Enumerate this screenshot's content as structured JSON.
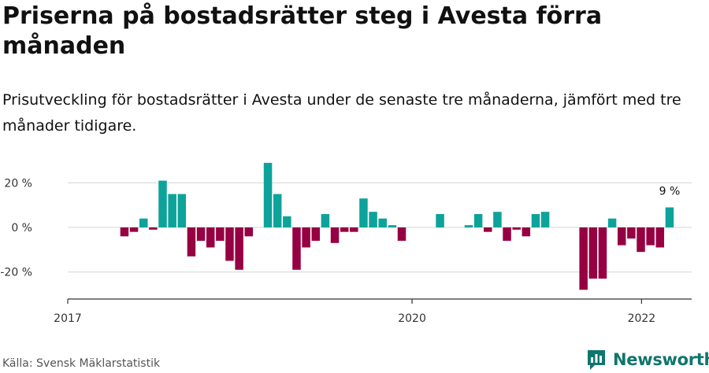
{
  "title": "Priserna på bostadsrätter steg i Avesta förra månaden",
  "subtitle": "Prisutveckling för bostadsrätter i Avesta under de senaste tre månaderna, jämfört med tre månader tidigare.",
  "source": "Källa: Svensk Mäklarstatistik",
  "brand": "Newsworthy",
  "colors": {
    "positive": "#0da39a",
    "negative": "#960042",
    "grid": "#dddddd",
    "axis": "#333333"
  },
  "chart_data": {
    "type": "bar",
    "x_start": "2017-01",
    "x_ticks": [
      "2017",
      "2020",
      "2022"
    ],
    "y_ticks": [
      20,
      0,
      -20
    ],
    "y_tick_labels": [
      "20 %",
      "0 %",
      "-20 %"
    ],
    "ylim": [
      -32,
      31
    ],
    "grid": true,
    "annotation": {
      "month": "2022-03",
      "label": "9 %"
    },
    "values": [
      null,
      null,
      null,
      null,
      null,
      -4,
      -2,
      4,
      -1,
      21,
      15,
      15,
      -13,
      -6,
      -9,
      -6,
      -15,
      -19,
      -4,
      null,
      29,
      15,
      5,
      -19,
      -9,
      -6,
      6,
      -7,
      -2,
      -2,
      13,
      7,
      4,
      1,
      -6,
      null,
      null,
      null,
      6,
      null,
      null,
      1,
      6,
      -2,
      7,
      -6,
      -1,
      -4,
      6,
      7,
      null,
      null,
      null,
      -28,
      -23,
      -23,
      4,
      -8,
      -5,
      -11,
      -8,
      -9,
      9
    ]
  }
}
